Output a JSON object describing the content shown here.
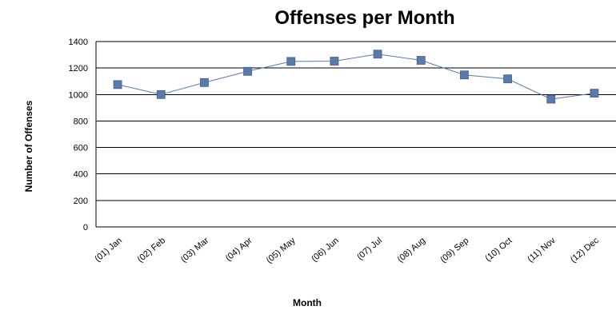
{
  "chart_data": {
    "type": "line",
    "title": "Offenses per Month",
    "xlabel": "Month",
    "ylabel": "Number of Offenses",
    "categories": [
      "(01) Jan",
      "(02) Feb",
      "(03) Mar",
      "(04) Apr",
      "(05) May",
      "(06) Jun",
      "(07) Jul",
      "(08) Aug",
      "(09) Sep",
      "(10) Oct",
      "(11) Nov",
      "(12) Dec"
    ],
    "series": [
      {
        "values": [
          1075,
          1000,
          1090,
          1175,
          1250,
          1252,
          1305,
          1258,
          1148,
          1118,
          965,
          1010
        ]
      }
    ],
    "ylim": [
      0,
      1400
    ],
    "yticks": [
      0,
      200,
      400,
      600,
      800,
      1000,
      1200,
      1400
    ],
    "grid": true,
    "legend": "none",
    "colors": {
      "line": "#5b7aa8",
      "marker": "#5b7aa8",
      "marker_edge": "#3f5f8f",
      "grid": "#000000"
    }
  }
}
